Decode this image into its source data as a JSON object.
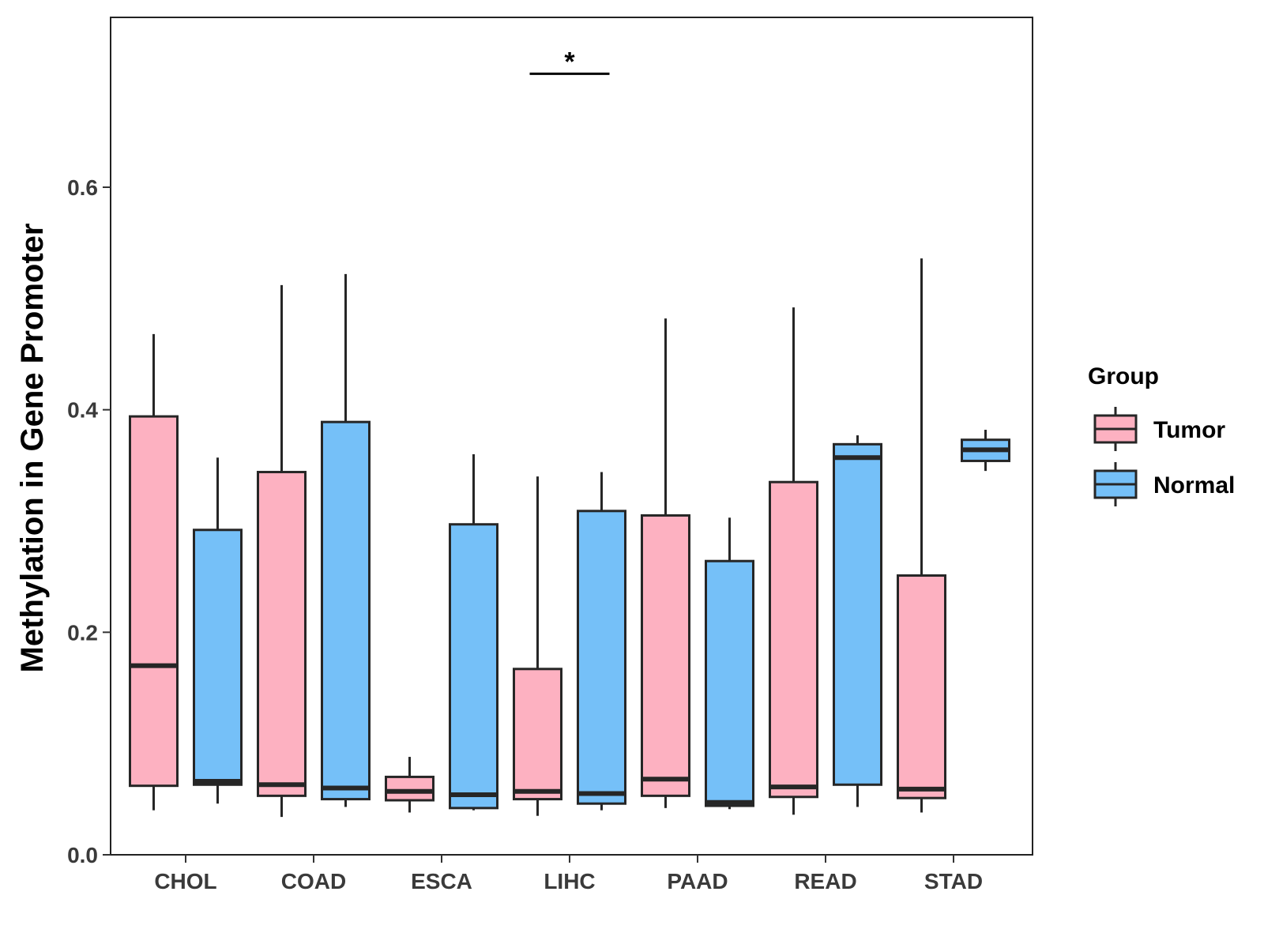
{
  "chart_data": {
    "type": "boxplot",
    "title": "",
    "xlabel": "",
    "ylabel": "Methylation in Gene Promoter",
    "ylim": [
      0,
      0.75
    ],
    "yticks": [
      "0.0",
      "0.2",
      "0.4",
      "0.6"
    ],
    "ytick_values": [
      0,
      0.2,
      0.4,
      0.6
    ],
    "categories": [
      "CHOL",
      "COAD",
      "ESCA",
      "LIHC",
      "PAAD",
      "READ",
      "STAD"
    ],
    "legend": {
      "title": "Group",
      "position": "right",
      "items": [
        {
          "name": "Tumor",
          "color": "#FDB1C1"
        },
        {
          "name": "Normal",
          "color": "#75C0F8"
        }
      ]
    },
    "series": [
      {
        "name": "Tumor",
        "color": "#FDB1C1",
        "boxes": [
          {
            "category": "CHOL",
            "min": 0.04,
            "q1": 0.062,
            "median": 0.17,
            "q3": 0.394,
            "max": 0.468
          },
          {
            "category": "COAD",
            "min": 0.034,
            "q1": 0.053,
            "median": 0.063,
            "q3": 0.344,
            "max": 0.512
          },
          {
            "category": "ESCA",
            "min": 0.038,
            "q1": 0.049,
            "median": 0.057,
            "q3": 0.07,
            "max": 0.088
          },
          {
            "category": "LIHC",
            "min": 0.035,
            "q1": 0.05,
            "median": 0.057,
            "q3": 0.167,
            "max": 0.34
          },
          {
            "category": "PAAD",
            "min": 0.042,
            "q1": 0.053,
            "median": 0.068,
            "q3": 0.305,
            "max": 0.482
          },
          {
            "category": "READ",
            "min": 0.036,
            "q1": 0.052,
            "median": 0.061,
            "q3": 0.335,
            "max": 0.492
          },
          {
            "category": "STAD",
            "min": 0.038,
            "q1": 0.051,
            "median": 0.059,
            "q3": 0.251,
            "max": 0.536
          }
        ]
      },
      {
        "name": "Normal",
        "color": "#75C0F8",
        "boxes": [
          {
            "category": "CHOL",
            "min": 0.046,
            "q1": 0.063,
            "median": 0.066,
            "q3": 0.292,
            "max": 0.357
          },
          {
            "category": "COAD",
            "min": 0.043,
            "q1": 0.05,
            "median": 0.06,
            "q3": 0.389,
            "max": 0.522
          },
          {
            "category": "ESCA",
            "min": 0.04,
            "q1": 0.042,
            "median": 0.054,
            "q3": 0.297,
            "max": 0.36
          },
          {
            "category": "LIHC",
            "min": 0.04,
            "q1": 0.046,
            "median": 0.055,
            "q3": 0.309,
            "max": 0.344
          },
          {
            "category": "PAAD",
            "min": 0.041,
            "q1": 0.044,
            "median": 0.047,
            "q3": 0.264,
            "max": 0.303
          },
          {
            "category": "READ",
            "min": 0.043,
            "q1": 0.063,
            "median": 0.357,
            "q3": 0.369,
            "max": 0.377
          },
          {
            "category": "STAD",
            "min": 0.345,
            "q1": 0.354,
            "median": 0.364,
            "q3": 0.373,
            "max": 0.382
          }
        ]
      }
    ],
    "annotations": [
      {
        "category": "LIHC",
        "label": "*",
        "y": 0.702
      }
    ],
    "grid": false
  }
}
